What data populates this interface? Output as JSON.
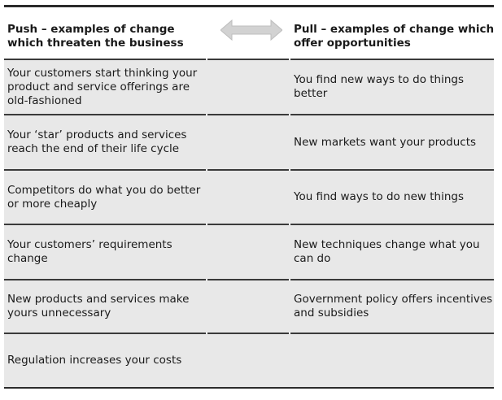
{
  "header": {
    "push_title": "Push – examples of change which threaten the business",
    "pull_title": "Pull – examples of change which offer opportunities",
    "arrow_icon": "double-headed-arrow-icon"
  },
  "rows": [
    {
      "push": "Your customers start thinking your product and service offerings are old-fashioned",
      "pull": "You find new ways to do things better"
    },
    {
      "push": "Your ‘star’ products and services reach the end of their life cycle",
      "pull": "New markets want your products"
    },
    {
      "push": "Competitors do what you do better or more cheaply",
      "pull": "You find ways to do new things"
    },
    {
      "push": "Your customers’ requirements change",
      "pull": "New techniques change what you can do"
    },
    {
      "push": "New products and services make yours unnecessary",
      "pull": "Government policy offers incentives and subsidies"
    },
    {
      "push": "Regulation increases your costs",
      "pull": ""
    }
  ],
  "colors": {
    "row_background": "#e8e8e8",
    "rule": "#2b2b2b",
    "arrow": "#cfcfcf"
  }
}
